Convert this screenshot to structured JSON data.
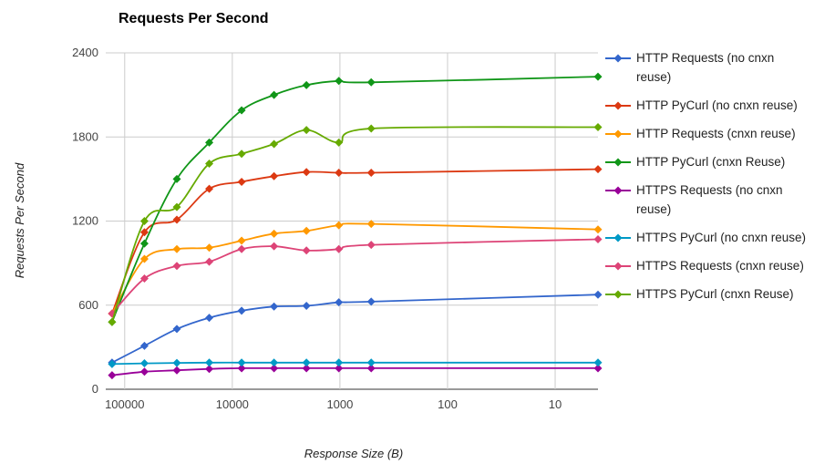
{
  "chart_data": {
    "type": "line",
    "title": "Requests Per Second",
    "xlabel": "Response Size (B)",
    "ylabel": "Requests Per Second",
    "x_scale": "log",
    "x_reversed": true,
    "xlim": [
      4,
      150000
    ],
    "ylim": [
      0,
      2400
    ],
    "y_ticks": [
      0,
      600,
      1200,
      1800,
      2400
    ],
    "x_ticks": [
      100000,
      10000,
      1000,
      100,
      10
    ],
    "x_tick_labels": [
      "100000",
      "10000",
      "1000",
      "100",
      "10"
    ],
    "grid": true,
    "legend_position": "right",
    "x": [
      131072,
      65536,
      32768,
      16384,
      8192,
      4096,
      2048,
      1024,
      512,
      4
    ],
    "series": [
      {
        "name": "HTTP Requests (no cnxn reuse)",
        "color": "#3366cc",
        "values": [
          190,
          310,
          430,
          510,
          560,
          590,
          595,
          620,
          625,
          675
        ]
      },
      {
        "name": "HTTP PyCurl (no cnxn reuse)",
        "color": "#dc3912",
        "values": [
          540,
          1120,
          1210,
          1430,
          1480,
          1520,
          1550,
          1545,
          1545,
          1570
        ]
      },
      {
        "name": "HTTP Requests (cnxn reuse)",
        "color": "#ff9900",
        "values": [
          540,
          930,
          1000,
          1010,
          1060,
          1110,
          1130,
          1170,
          1180,
          1140
        ]
      },
      {
        "name": "HTTP PyCurl (cnxn Reuse)",
        "color": "#109618",
        "values": [
          480,
          1040,
          1500,
          1760,
          1990,
          2100,
          2170,
          2200,
          2190,
          2230
        ]
      },
      {
        "name": "HTTPS Requests (no cnxn reuse)",
        "color": "#990099",
        "values": [
          100,
          125,
          135,
          145,
          150,
          150,
          150,
          150,
          150,
          150
        ]
      },
      {
        "name": "HTTPS PyCurl (no cnxn reuse)",
        "color": "#0099c6",
        "values": [
          180,
          185,
          188,
          190,
          190,
          190,
          190,
          190,
          190,
          190
        ]
      },
      {
        "name": "HTTPS Requests (cnxn reuse)",
        "color": "#dd4477",
        "values": [
          540,
          790,
          880,
          910,
          1000,
          1020,
          990,
          1000,
          1030,
          1070
        ]
      },
      {
        "name": "HTTPS PyCurl (cnxn Reuse)",
        "color": "#66aa00",
        "values": [
          480,
          1200,
          1300,
          1610,
          1680,
          1750,
          1850,
          1760,
          1860,
          1870
        ]
      }
    ],
    "legend": [
      {
        "lines": [
          "HTTP Requests (no cnxn",
          "reuse)"
        ]
      },
      {
        "lines": [
          "HTTP PyCurl (no cnxn reuse)"
        ]
      },
      {
        "lines": [
          "HTTP Requests (cnxn reuse)"
        ]
      },
      {
        "lines": [
          "HTTP PyCurl (cnxn Reuse)"
        ]
      },
      {
        "lines": [
          "HTTPS Requests (no cnxn",
          "reuse)"
        ]
      },
      {
        "lines": [
          "HTTPS PyCurl (no cnxn reuse)"
        ]
      },
      {
        "lines": [
          "HTTPS Requests (cnxn reuse)"
        ]
      },
      {
        "lines": [
          "HTTPS PyCurl (cnxn Reuse)"
        ]
      }
    ]
  }
}
